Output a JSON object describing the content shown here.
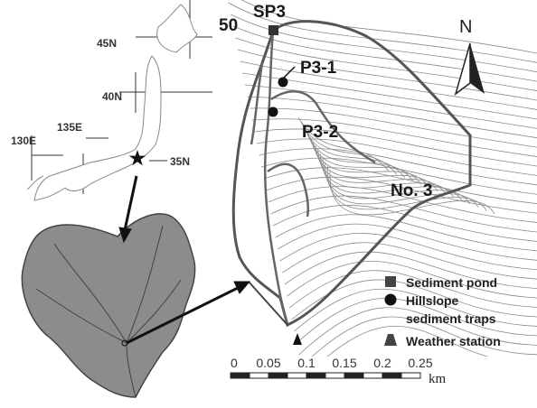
{
  "map_labels": {
    "pond": "SP3",
    "trap1": "P3-1",
    "trap2": "P3-2",
    "catchment": "No. 3",
    "north": "N",
    "corner": "50"
  },
  "japan_labels": {
    "lat45": "45N",
    "lat40": "40N",
    "lat35": "35N",
    "lon135": "135E",
    "lon130": "130E"
  },
  "legend": {
    "pond": "Sediment pond",
    "traps_line1": "Hillslope",
    "traps_line2": "sediment traps",
    "weather": "Weather station"
  },
  "scale": {
    "labels": [
      "0",
      "0.05",
      "0.1",
      "0.15",
      "0.2",
      "0.25"
    ],
    "unit": "km"
  }
}
